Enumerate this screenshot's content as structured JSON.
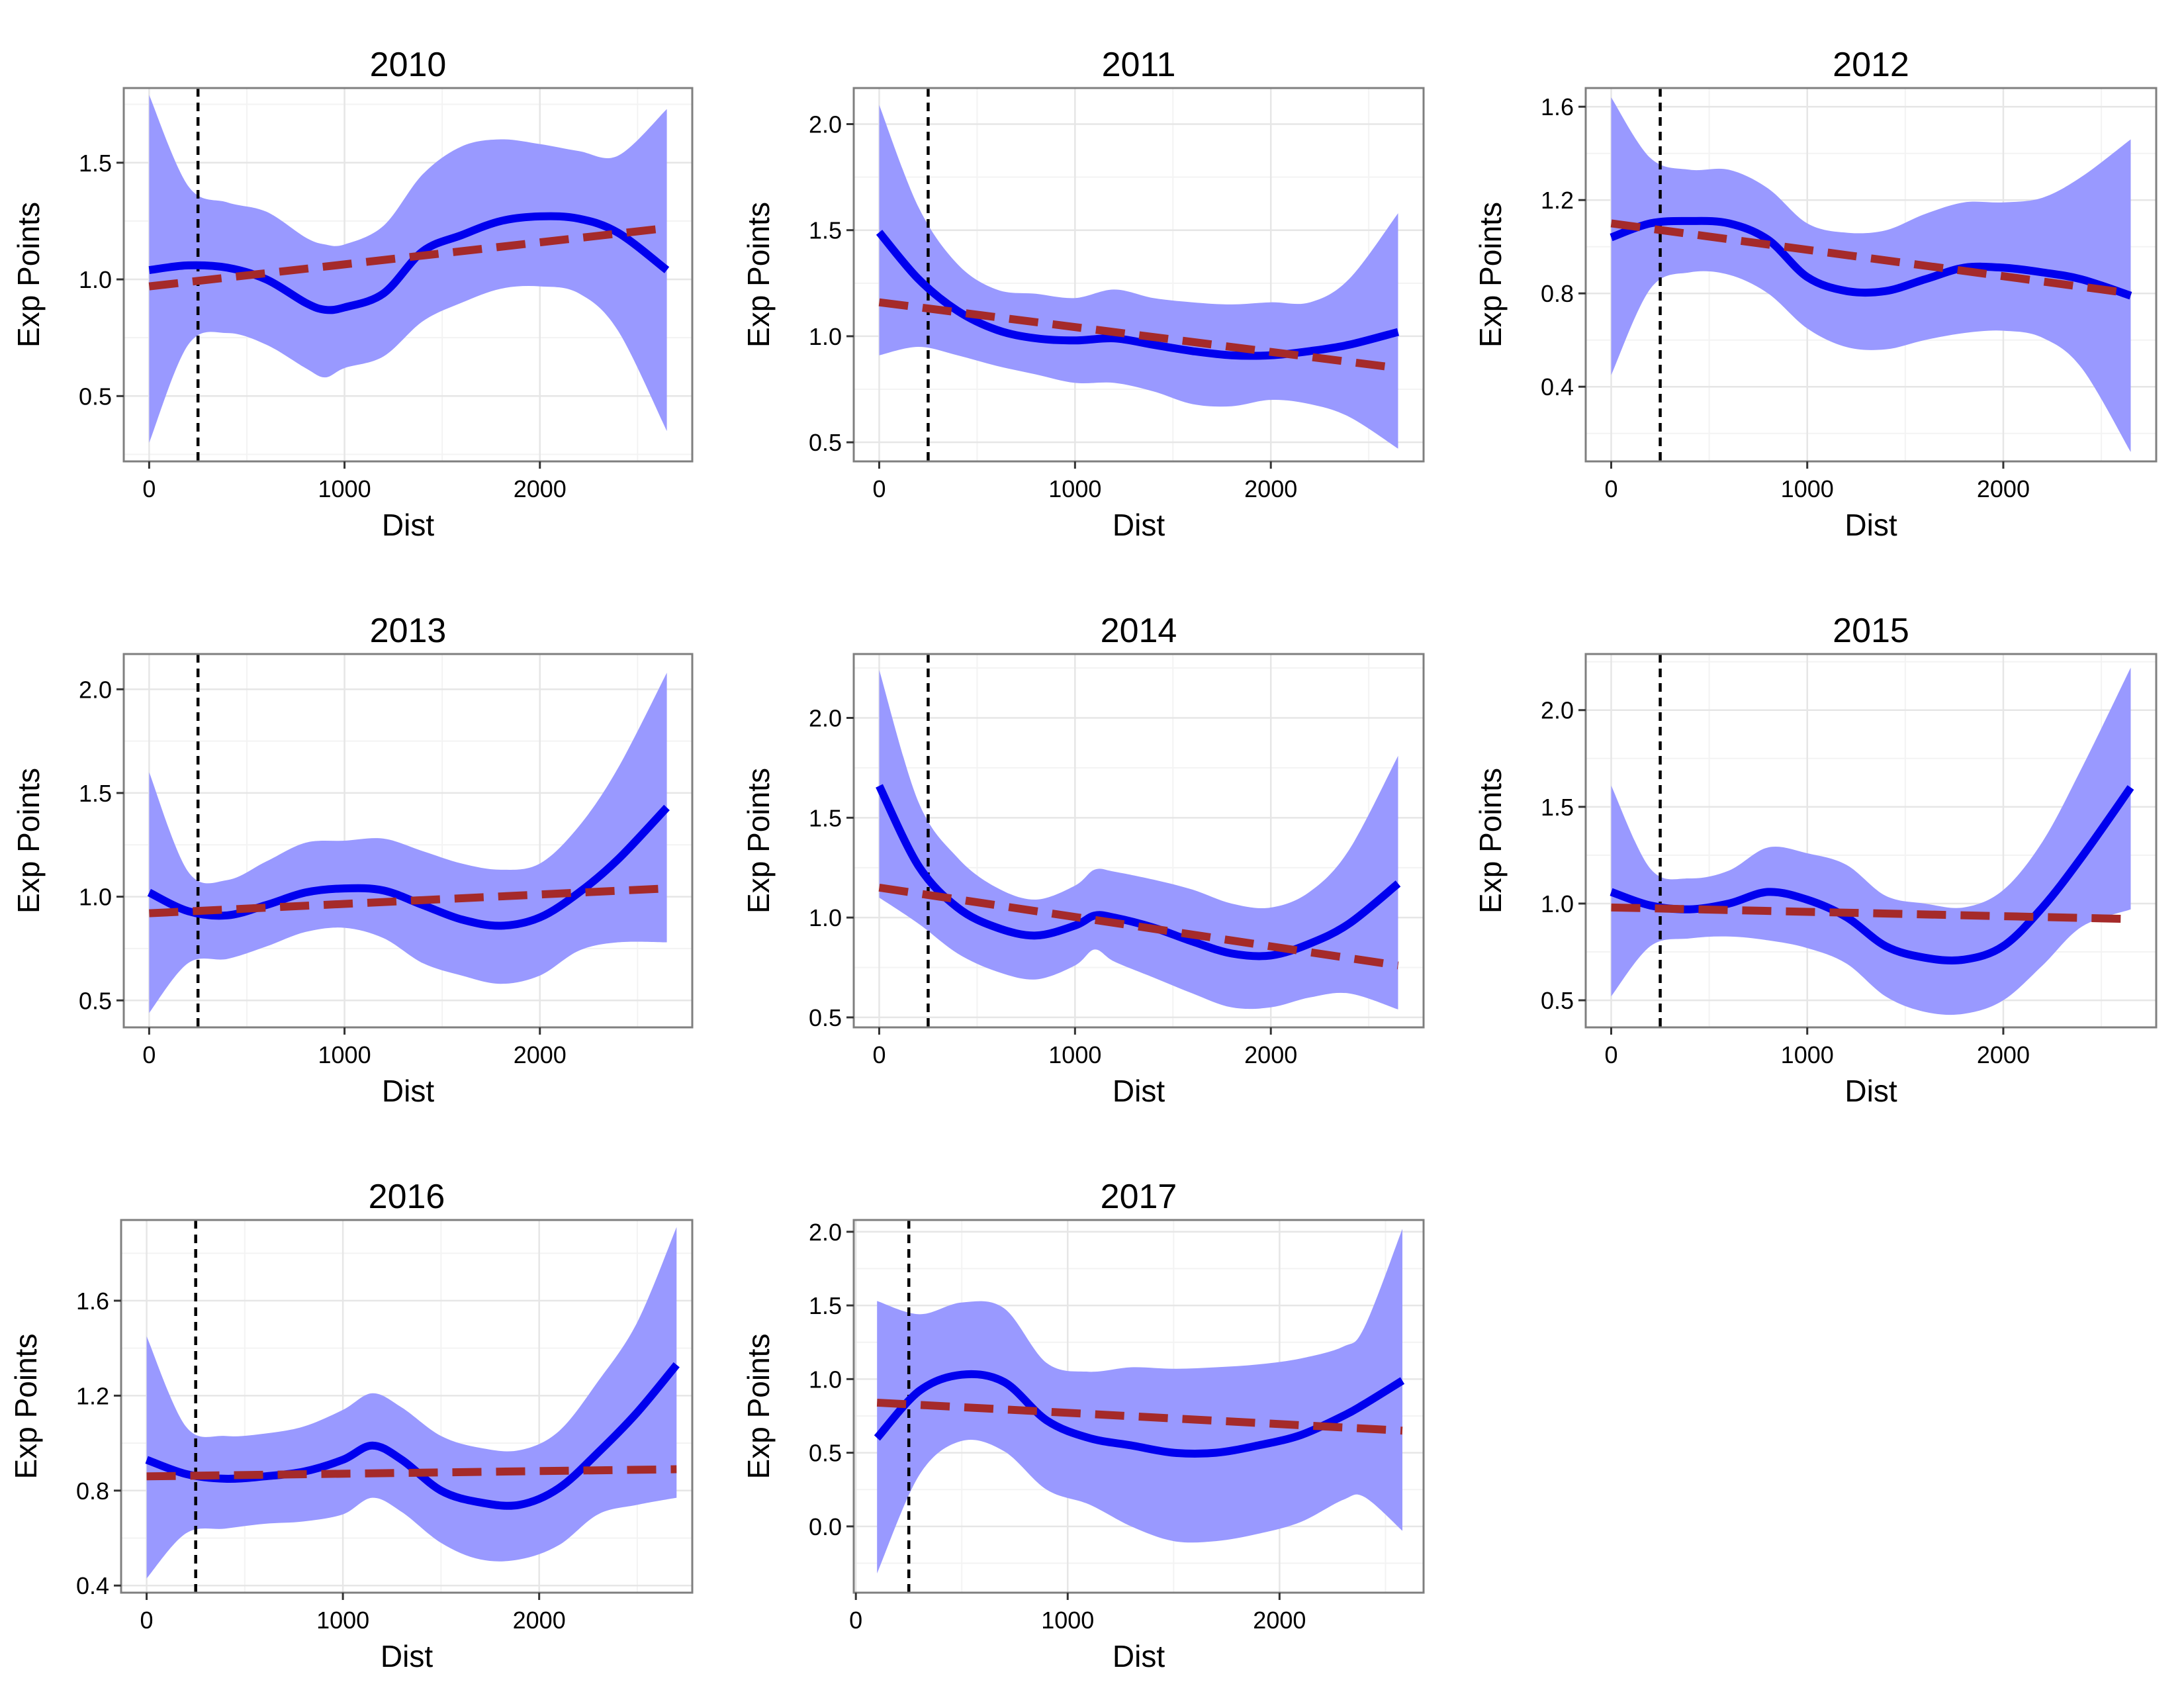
{
  "figure": {
    "background": "#ffffff",
    "panel_background": "#ffffff",
    "panel_border_color": "#7f7f7f",
    "grid_major_color": "#e6e6e6",
    "grid_minor_color": "#f3f3f3",
    "ribbon_color": "#9999ff",
    "smooth_color": "#0000ee",
    "linear_color": "#a52a2a",
    "cutoff_color": "#000000"
  },
  "chart_data": [
    {
      "type": "line",
      "title": "2010",
      "xlabel": "Dist",
      "ylabel": "Exp Points",
      "xlim": [
        -130,
        2780
      ],
      "ylim": [
        0.22,
        1.82
      ],
      "xticks": [
        0,
        1000,
        2000
      ],
      "xtick_labels": [
        "0",
        "1000",
        "2000"
      ],
      "yticks": [
        0.5,
        1.0,
        1.5
      ],
      "ytick_labels": [
        "0.5",
        "1.0",
        "1.5"
      ],
      "grid": true,
      "legend": "none",
      "cutoff_x": 250,
      "series": [
        {
          "kind": "confidence_band",
          "x": [
            0,
            200,
            400,
            600,
            800,
            900,
            1000,
            1200,
            1400,
            1600,
            1800,
            2000,
            2200,
            2400,
            2650
          ],
          "lower": [
            0.3,
            0.72,
            0.77,
            0.72,
            0.62,
            0.58,
            0.62,
            0.67,
            0.82,
            0.9,
            0.96,
            0.97,
            0.94,
            0.78,
            0.35
          ],
          "upper": [
            1.79,
            1.4,
            1.33,
            1.29,
            1.18,
            1.15,
            1.15,
            1.23,
            1.45,
            1.57,
            1.6,
            1.58,
            1.55,
            1.53,
            1.73
          ]
        },
        {
          "kind": "smooth",
          "x": [
            0,
            200,
            400,
            600,
            800,
            900,
            1000,
            1200,
            1400,
            1600,
            1800,
            2000,
            2200,
            2400,
            2650
          ],
          "y": [
            1.04,
            1.06,
            1.05,
            1.0,
            0.9,
            0.87,
            0.88,
            0.94,
            1.12,
            1.19,
            1.25,
            1.27,
            1.26,
            1.2,
            1.04
          ]
        },
        {
          "kind": "linear",
          "x": [
            0,
            2650
          ],
          "y": [
            0.97,
            1.22
          ]
        }
      ]
    },
    {
      "type": "line",
      "title": "2011",
      "xlabel": "Dist",
      "ylabel": "Exp Points",
      "xlim": [
        -130,
        2780
      ],
      "ylim": [
        0.41,
        2.17
      ],
      "xticks": [
        0,
        1000,
        2000
      ],
      "xtick_labels": [
        "0",
        "1000",
        "2000"
      ],
      "yticks": [
        0.5,
        1.0,
        1.5,
        2.0
      ],
      "ytick_labels": [
        "0.5",
        "1.0",
        "1.5",
        "2.0"
      ],
      "grid": true,
      "legend": "none",
      "cutoff_x": 250,
      "series": [
        {
          "kind": "confidence_band",
          "x": [
            0,
            200,
            400,
            600,
            800,
            1000,
            1200,
            1400,
            1600,
            1800,
            2000,
            2200,
            2400,
            2650
          ],
          "lower": [
            0.91,
            0.95,
            0.91,
            0.86,
            0.82,
            0.78,
            0.78,
            0.74,
            0.68,
            0.67,
            0.7,
            0.68,
            0.62,
            0.47
          ],
          "upper": [
            2.09,
            1.61,
            1.34,
            1.22,
            1.2,
            1.18,
            1.22,
            1.18,
            1.16,
            1.15,
            1.16,
            1.16,
            1.27,
            1.58
          ]
        },
        {
          "kind": "smooth",
          "x": [
            0,
            200,
            400,
            600,
            800,
            1000,
            1200,
            1400,
            1600,
            1800,
            2000,
            2200,
            2400,
            2650
          ],
          "y": [
            1.49,
            1.27,
            1.12,
            1.03,
            0.99,
            0.98,
            0.99,
            0.96,
            0.93,
            0.91,
            0.91,
            0.93,
            0.96,
            1.02
          ]
        },
        {
          "kind": "linear",
          "x": [
            0,
            2650
          ],
          "y": [
            1.16,
            0.85
          ]
        }
      ]
    },
    {
      "type": "line",
      "title": "2012",
      "xlabel": "Dist",
      "ylabel": "Exp Points",
      "xlim": [
        -130,
        2780
      ],
      "ylim": [
        0.08,
        1.68
      ],
      "xticks": [
        0,
        1000,
        2000
      ],
      "xtick_labels": [
        "0",
        "1000",
        "2000"
      ],
      "yticks": [
        0.4,
        0.8,
        1.2,
        1.6
      ],
      "ytick_labels": [
        "0.4",
        "0.8",
        "1.2",
        "1.6"
      ],
      "grid": true,
      "legend": "none",
      "cutoff_x": 250,
      "series": [
        {
          "kind": "confidence_band",
          "x": [
            0,
            200,
            400,
            600,
            800,
            1000,
            1200,
            1400,
            1600,
            1800,
            2000,
            2200,
            2400,
            2650
          ],
          "lower": [
            0.45,
            0.82,
            0.89,
            0.88,
            0.8,
            0.65,
            0.57,
            0.56,
            0.6,
            0.63,
            0.64,
            0.61,
            0.48,
            0.12
          ],
          "upper": [
            1.64,
            1.38,
            1.33,
            1.33,
            1.25,
            1.1,
            1.06,
            1.07,
            1.14,
            1.19,
            1.19,
            1.21,
            1.3,
            1.46
          ]
        },
        {
          "kind": "smooth",
          "x": [
            0,
            200,
            400,
            600,
            800,
            1000,
            1200,
            1400,
            1600,
            1800,
            2000,
            2200,
            2400,
            2650
          ],
          "y": [
            1.04,
            1.1,
            1.11,
            1.1,
            1.03,
            0.87,
            0.81,
            0.81,
            0.86,
            0.91,
            0.91,
            0.89,
            0.86,
            0.79
          ]
        },
        {
          "kind": "linear",
          "x": [
            0,
            2650
          ],
          "y": [
            1.1,
            0.8
          ]
        }
      ]
    },
    {
      "type": "line",
      "title": "2013",
      "xlabel": "Dist",
      "ylabel": "Exp Points",
      "xlim": [
        -130,
        2780
      ],
      "ylim": [
        0.37,
        2.17
      ],
      "xticks": [
        0,
        1000,
        2000
      ],
      "xtick_labels": [
        "0",
        "1000",
        "2000"
      ],
      "yticks": [
        0.5,
        1.0,
        1.5,
        2.0
      ],
      "ytick_labels": [
        "0.5",
        "1.0",
        "1.5",
        "2.0"
      ],
      "grid": true,
      "legend": "none",
      "cutoff_x": 250,
      "series": [
        {
          "kind": "confidence_band",
          "x": [
            0,
            200,
            400,
            600,
            800,
            1000,
            1200,
            1400,
            1600,
            1800,
            2000,
            2200,
            2400,
            2650
          ],
          "lower": [
            0.44,
            0.68,
            0.7,
            0.76,
            0.83,
            0.85,
            0.8,
            0.68,
            0.62,
            0.58,
            0.62,
            0.74,
            0.78,
            0.78
          ],
          "upper": [
            1.6,
            1.12,
            1.08,
            1.17,
            1.26,
            1.27,
            1.28,
            1.22,
            1.16,
            1.13,
            1.16,
            1.34,
            1.62,
            2.08
          ]
        },
        {
          "kind": "smooth",
          "x": [
            0,
            200,
            400,
            600,
            800,
            1000,
            1200,
            1400,
            1600,
            1800,
            2000,
            2200,
            2400,
            2650
          ],
          "y": [
            1.02,
            0.93,
            0.91,
            0.96,
            1.02,
            1.04,
            1.03,
            0.96,
            0.89,
            0.86,
            0.9,
            1.02,
            1.18,
            1.43
          ]
        },
        {
          "kind": "linear",
          "x": [
            0,
            2650
          ],
          "y": [
            0.92,
            1.04
          ]
        }
      ]
    },
    {
      "type": "line",
      "title": "2014",
      "xlabel": "Dist",
      "ylabel": "Exp Points",
      "xlim": [
        -130,
        2780
      ],
      "ylim": [
        0.45,
        2.32
      ],
      "xticks": [
        0,
        1000,
        2000
      ],
      "xtick_labels": [
        "0",
        "1000",
        "2000"
      ],
      "yticks": [
        0.5,
        1.0,
        1.5,
        2.0
      ],
      "ytick_labels": [
        "0.5",
        "1.0",
        "1.5",
        "2.0"
      ],
      "grid": true,
      "legend": "none",
      "cutoff_x": 250,
      "series": [
        {
          "kind": "confidence_band",
          "x": [
            0,
            200,
            400,
            600,
            800,
            1000,
            1100,
            1200,
            1400,
            1600,
            1800,
            2000,
            2200,
            2400,
            2650
          ],
          "lower": [
            1.1,
            0.97,
            0.82,
            0.73,
            0.69,
            0.76,
            0.84,
            0.78,
            0.7,
            0.62,
            0.55,
            0.55,
            0.6,
            0.62,
            0.54
          ],
          "upper": [
            2.24,
            1.58,
            1.3,
            1.15,
            1.09,
            1.16,
            1.24,
            1.23,
            1.19,
            1.14,
            1.07,
            1.05,
            1.13,
            1.34,
            1.81
          ]
        },
        {
          "kind": "smooth",
          "x": [
            0,
            200,
            400,
            600,
            800,
            1000,
            1100,
            1200,
            1400,
            1600,
            1800,
            2000,
            2200,
            2400,
            2650
          ],
          "y": [
            1.66,
            1.26,
            1.05,
            0.95,
            0.91,
            0.96,
            1.01,
            1.0,
            0.95,
            0.88,
            0.82,
            0.81,
            0.87,
            0.97,
            1.17
          ]
        },
        {
          "kind": "linear",
          "x": [
            0,
            2650
          ],
          "y": [
            1.15,
            0.76
          ]
        }
      ]
    },
    {
      "type": "line",
      "title": "2015",
      "xlabel": "Dist",
      "ylabel": "Exp Points",
      "xlim": [
        -130,
        2780
      ],
      "ylim": [
        0.36,
        2.29
      ],
      "xticks": [
        0,
        1000,
        2000
      ],
      "xtick_labels": [
        "0",
        "1000",
        "2000"
      ],
      "yticks": [
        0.5,
        1.0,
        1.5,
        2.0
      ],
      "ytick_labels": [
        "0.5",
        "1.0",
        "1.5",
        "2.0"
      ],
      "grid": true,
      "legend": "none",
      "cutoff_x": 250,
      "series": [
        {
          "kind": "confidence_band",
          "x": [
            0,
            200,
            400,
            600,
            800,
            1000,
            1200,
            1400,
            1600,
            1800,
            2000,
            2200,
            2400,
            2650
          ],
          "lower": [
            0.52,
            0.78,
            0.82,
            0.83,
            0.81,
            0.77,
            0.69,
            0.52,
            0.44,
            0.43,
            0.5,
            0.68,
            0.88,
            0.97
          ],
          "upper": [
            1.61,
            1.18,
            1.13,
            1.17,
            1.29,
            1.26,
            1.2,
            1.04,
            1.0,
            0.98,
            1.07,
            1.32,
            1.7,
            2.22
          ]
        },
        {
          "kind": "smooth",
          "x": [
            0,
            200,
            400,
            600,
            800,
            1000,
            1200,
            1400,
            1600,
            1800,
            2000,
            2200,
            2400,
            2650
          ],
          "y": [
            1.06,
            0.99,
            0.97,
            1.0,
            1.06,
            1.02,
            0.93,
            0.78,
            0.72,
            0.71,
            0.78,
            0.98,
            1.24,
            1.6
          ]
        },
        {
          "kind": "linear",
          "x": [
            0,
            2650
          ],
          "y": [
            0.98,
            0.92
          ]
        }
      ]
    },
    {
      "type": "line",
      "title": "2016",
      "xlabel": "Dist",
      "ylabel": "Exp Points",
      "xlim": [
        -130,
        2780
      ],
      "ylim": [
        0.37,
        1.94
      ],
      "xticks": [
        0,
        1000,
        2000
      ],
      "xtick_labels": [
        "0",
        "1000",
        "2000"
      ],
      "yticks": [
        0.4,
        0.8,
        1.2,
        1.6
      ],
      "ytick_labels": [
        "0.4",
        "0.8",
        "1.2",
        "1.6"
      ],
      "grid": true,
      "legend": "none",
      "cutoff_x": 250,
      "series": [
        {
          "kind": "confidence_band",
          "x": [
            0,
            200,
            400,
            600,
            800,
            1000,
            1150,
            1300,
            1500,
            1700,
            1900,
            2100,
            2300,
            2500,
            2700
          ],
          "lower": [
            0.43,
            0.62,
            0.64,
            0.66,
            0.67,
            0.7,
            0.77,
            0.71,
            0.58,
            0.51,
            0.51,
            0.57,
            0.7,
            0.74,
            0.77
          ],
          "upper": [
            1.45,
            1.07,
            1.03,
            1.04,
            1.07,
            1.14,
            1.21,
            1.15,
            1.03,
            0.98,
            0.97,
            1.05,
            1.26,
            1.51,
            1.91
          ]
        },
        {
          "kind": "smooth",
          "x": [
            0,
            200,
            400,
            600,
            800,
            1000,
            1150,
            1300,
            1500,
            1700,
            1900,
            2100,
            2300,
            2500,
            2700
          ],
          "y": [
            0.93,
            0.87,
            0.85,
            0.86,
            0.88,
            0.93,
            0.99,
            0.93,
            0.8,
            0.75,
            0.74,
            0.81,
            0.96,
            1.13,
            1.33
          ]
        },
        {
          "kind": "linear",
          "x": [
            0,
            2700
          ],
          "y": [
            0.86,
            0.89
          ]
        }
      ]
    },
    {
      "type": "line",
      "title": "2017",
      "xlabel": "Dist",
      "ylabel": "Exp Points",
      "xlim": [
        -10,
        2680
      ],
      "ylim": [
        -0.45,
        2.08
      ],
      "xticks": [
        0,
        1000,
        2000
      ],
      "xtick_labels": [
        "0",
        "1000",
        "2000"
      ],
      "yticks": [
        0.0,
        0.5,
        1.0,
        1.5,
        2.0
      ],
      "ytick_labels": [
        "0.0",
        "0.5",
        "1.0",
        "1.5",
        "2.0"
      ],
      "grid": true,
      "legend": "none",
      "cutoff_x": 250,
      "series": [
        {
          "kind": "confidence_band",
          "x": [
            100,
            300,
            500,
            700,
            900,
            1100,
            1300,
            1500,
            1700,
            1900,
            2100,
            2300,
            2400,
            2580
          ],
          "lower": [
            -0.32,
            0.35,
            0.58,
            0.51,
            0.25,
            0.15,
            0.0,
            -0.1,
            -0.1,
            -0.05,
            0.03,
            0.18,
            0.2,
            -0.03
          ],
          "upper": [
            1.53,
            1.44,
            1.52,
            1.48,
            1.11,
            1.05,
            1.08,
            1.07,
            1.08,
            1.1,
            1.14,
            1.22,
            1.35,
            2.02
          ]
        },
        {
          "kind": "smooth",
          "x": [
            100,
            300,
            500,
            700,
            900,
            1100,
            1300,
            1500,
            1700,
            1900,
            2100,
            2300,
            2400,
            2580
          ],
          "y": [
            0.6,
            0.92,
            1.03,
            0.98,
            0.72,
            0.6,
            0.55,
            0.5,
            0.5,
            0.55,
            0.62,
            0.75,
            0.83,
            0.99
          ]
        },
        {
          "kind": "linear",
          "x": [
            100,
            2580
          ],
          "y": [
            0.84,
            0.65
          ]
        }
      ]
    }
  ]
}
